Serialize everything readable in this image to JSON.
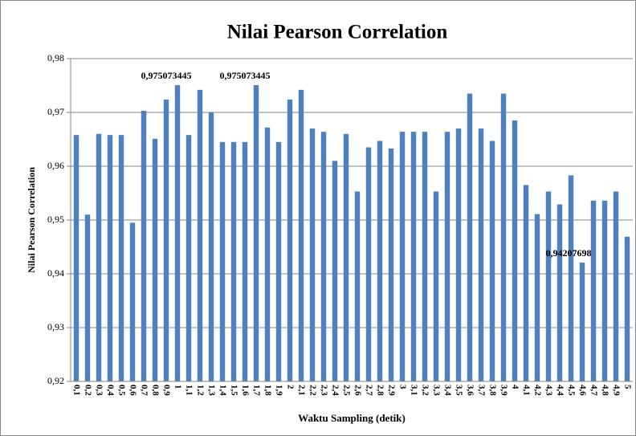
{
  "chart_data": {
    "type": "bar",
    "title": "Nilai Pearson Correlation",
    "xlabel": "Waktu Sampling (detik)",
    "ylabel": "Nilai Pearson Correlation",
    "categories": [
      "0,1",
      "0,2",
      "0,3",
      "0,4",
      "0,5",
      "0,6",
      "0,7",
      "0,8",
      "0,9",
      "1",
      "1,1",
      "1,2",
      "1,3",
      "1,4",
      "1,5",
      "1,6",
      "1,7",
      "1,8",
      "1,9",
      "2",
      "2,1",
      "2,2",
      "2,3",
      "2,4",
      "2,5",
      "2,6",
      "2,7",
      "2,8",
      "2,9",
      "3",
      "3,1",
      "3,2",
      "3,3",
      "3,4",
      "3,5",
      "3,6",
      "3,7",
      "3,8",
      "3,9",
      "4",
      "4,1",
      "4,2",
      "4,3",
      "4,4",
      "4,5",
      "4,6",
      "4,7",
      "4,8",
      "4,9",
      "5"
    ],
    "values": [
      0.9658,
      0.951,
      0.966,
      0.9658,
      0.9658,
      0.9495,
      0.9703,
      0.9651,
      0.9724,
      0.975073445,
      0.9658,
      0.9742,
      0.97,
      0.9645,
      0.9645,
      0.9645,
      0.975073445,
      0.9672,
      0.9645,
      0.9724,
      0.9742,
      0.967,
      0.9664,
      0.961,
      0.966,
      0.9553,
      0.9635,
      0.9647,
      0.9633,
      0.9664,
      0.9664,
      0.9664,
      0.9553,
      0.9664,
      0.967,
      0.9735,
      0.967,
      0.9647,
      0.9735,
      0.9685,
      0.9565,
      0.9511,
      0.9553,
      0.9529,
      0.9583,
      0.942076988,
      0.9536,
      0.9536,
      0.9553,
      0.9469
    ],
    "value_labels": [
      null,
      null,
      null,
      null,
      null,
      null,
      null,
      null,
      null,
      "0,975073445",
      null,
      null,
      null,
      null,
      null,
      null,
      "0,975073445",
      null,
      null,
      null,
      null,
      null,
      null,
      null,
      null,
      null,
      null,
      null,
      null,
      null,
      null,
      null,
      null,
      null,
      null,
      null,
      null,
      null,
      null,
      null,
      null,
      null,
      null,
      null,
      null,
      "0,942076988",
      null,
      null,
      null,
      null
    ],
    "color": "#4f81bd",
    "ylim": [
      0.92,
      0.98
    ],
    "yticks": [
      {
        "value": 0.92,
        "label": "0,92"
      },
      {
        "value": 0.93,
        "label": "0,93"
      },
      {
        "value": 0.94,
        "label": "0,94"
      },
      {
        "value": 0.95,
        "label": "0,95"
      },
      {
        "value": 0.96,
        "label": "0,96"
      },
      {
        "value": 0.97,
        "label": "0,97"
      },
      {
        "value": 0.98,
        "label": "0,98"
      }
    ],
    "grid": true
  }
}
